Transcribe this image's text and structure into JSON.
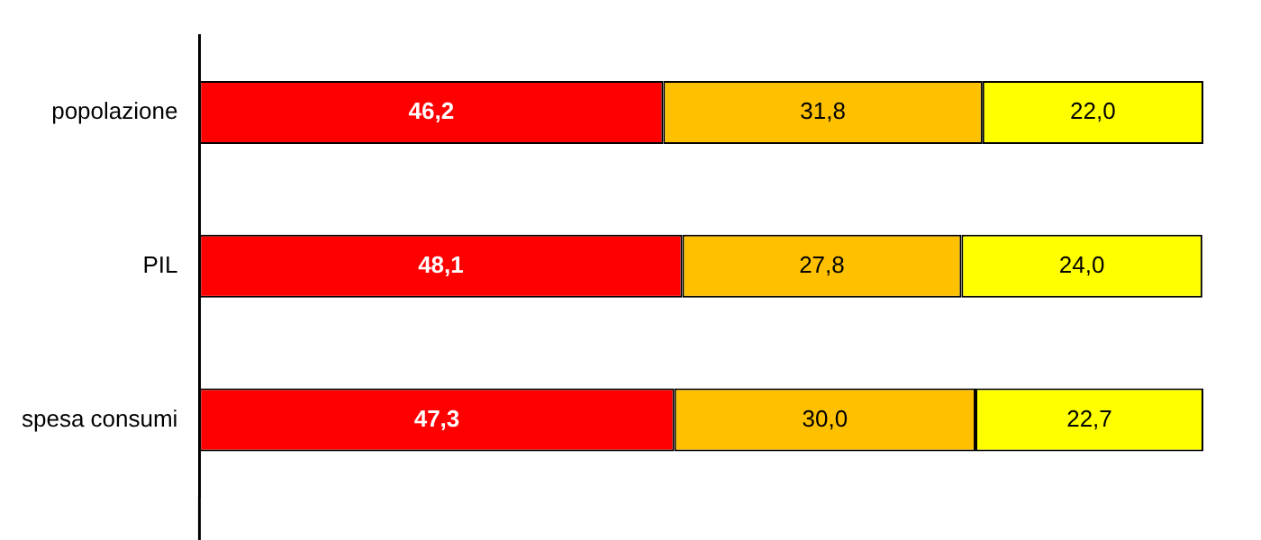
{
  "chart_data": {
    "type": "bar",
    "orientation": "horizontal",
    "stacked": true,
    "categories": [
      "popolazione",
      "PIL",
      "spesa consumi"
    ],
    "series": [
      {
        "color": "#ff0000",
        "values": [
          46.2,
          48.1,
          47.3
        ],
        "value_labels": [
          "46,2",
          "48,1",
          "47,3"
        ]
      },
      {
        "color": "#ffc000",
        "values": [
          31.8,
          27.8,
          30.0
        ],
        "value_labels": [
          "31,8",
          "27,8",
          "30,0"
        ]
      },
      {
        "color": "#ffff00",
        "values": [
          22.0,
          24.0,
          22.7
        ],
        "value_labels": [
          "22,0",
          "24,0",
          "22,7"
        ]
      }
    ],
    "xlim": [
      0,
      100
    ],
    "tick_labels": "y",
    "grid": false,
    "legend": false
  }
}
